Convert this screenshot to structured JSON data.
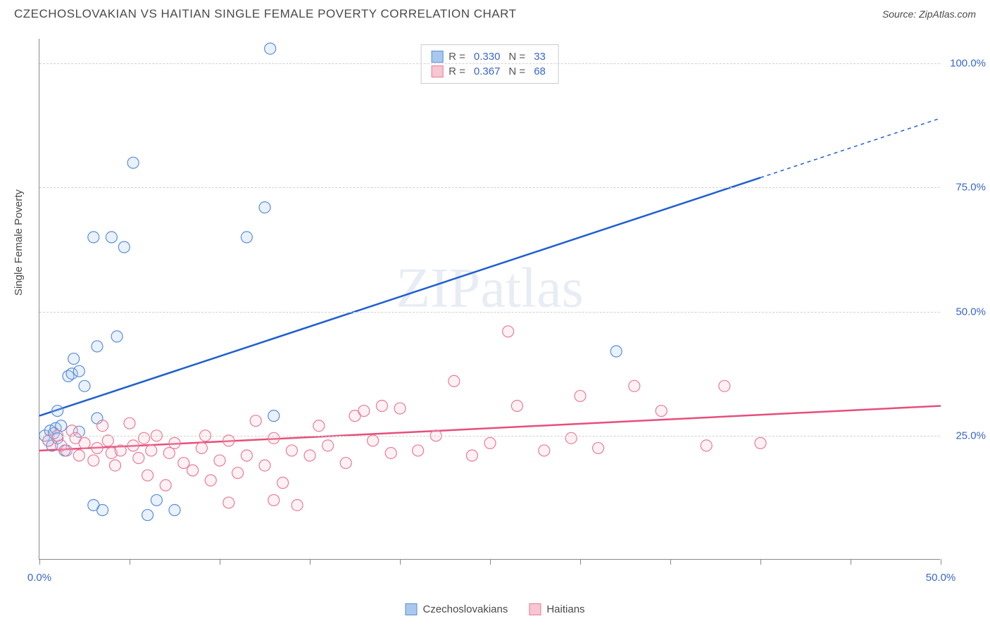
{
  "title": "CZECHOSLOVAKIAN VS HAITIAN SINGLE FEMALE POVERTY CORRELATION CHART",
  "source_label": "Source: ",
  "source_name": "ZipAtlas.com",
  "y_axis_label": "Single Female Poverty",
  "watermark": "ZIPatlas",
  "chart": {
    "type": "scatter",
    "xlim": [
      0,
      50
    ],
    "ylim": [
      0,
      105
    ],
    "x_ticks": [
      0,
      50
    ],
    "x_tick_labels": [
      "0.0%",
      "50.0%"
    ],
    "x_minor_ticks": [
      5,
      10,
      15,
      20,
      25,
      30,
      35,
      40,
      45
    ],
    "y_grid": [
      25,
      50,
      75,
      100
    ],
    "y_tick_labels": [
      "25.0%",
      "50.0%",
      "75.0%",
      "100.0%"
    ],
    "background_color": "#ffffff",
    "grid_color": "#d0d0d0",
    "axis_color": "#888888",
    "marker_radius": 8,
    "marker_stroke_width": 1.2,
    "marker_fill_opacity": 0.25,
    "series": [
      {
        "name": "Czechoslovakians",
        "color_fill": "#a9c8ee",
        "color_stroke": "#5a8ed6",
        "line_color": "#1f5fd0",
        "line_width": 2.5,
        "R": "0.330",
        "N": "33",
        "trend": {
          "x1": 0,
          "y1": 29,
          "x2": 40,
          "y2": 77,
          "x2_dash": 50,
          "y2_dash": 89
        },
        "points": [
          [
            0.3,
            25
          ],
          [
            0.5,
            24
          ],
          [
            0.6,
            26
          ],
          [
            0.7,
            23
          ],
          [
            0.8,
            25.5
          ],
          [
            0.9,
            26.5
          ],
          [
            1.0,
            24.5
          ],
          [
            1.2,
            27
          ],
          [
            1.0,
            30
          ],
          [
            1.6,
            37
          ],
          [
            1.8,
            37.5
          ],
          [
            2.2,
            38
          ],
          [
            1.9,
            40.5
          ],
          [
            3.2,
            43
          ],
          [
            4.3,
            45
          ],
          [
            2.5,
            35
          ],
          [
            3.0,
            65
          ],
          [
            4.0,
            65
          ],
          [
            4.7,
            63
          ],
          [
            5.2,
            80
          ],
          [
            11.5,
            65
          ],
          [
            12.5,
            71
          ],
          [
            12.8,
            103
          ],
          [
            3.0,
            11
          ],
          [
            3.5,
            10
          ],
          [
            6.0,
            9
          ],
          [
            6.5,
            12
          ],
          [
            7.5,
            10
          ],
          [
            13.0,
            29
          ],
          [
            3.2,
            28.5
          ],
          [
            1.4,
            22
          ],
          [
            2.2,
            25.8
          ],
          [
            32,
            42
          ]
        ]
      },
      {
        "name": "Haitians",
        "color_fill": "#f7c6d2",
        "color_stroke": "#e87b9a",
        "line_color": "#e64f7c",
        "line_width": 2.5,
        "R": "0.367",
        "N": "68",
        "trend": {
          "x1": 0,
          "y1": 22,
          "x2": 50,
          "y2": 31
        },
        "points": [
          [
            0.5,
            24
          ],
          [
            1.0,
            25
          ],
          [
            1.2,
            23
          ],
          [
            1.5,
            22
          ],
          [
            1.8,
            26
          ],
          [
            2.0,
            24.5
          ],
          [
            2.2,
            21
          ],
          [
            2.5,
            23.5
          ],
          [
            3.0,
            20
          ],
          [
            3.2,
            22.5
          ],
          [
            3.5,
            27
          ],
          [
            3.8,
            24
          ],
          [
            4.0,
            21.5
          ],
          [
            4.2,
            19
          ],
          [
            4.5,
            22
          ],
          [
            5.0,
            27.5
          ],
          [
            5.2,
            23
          ],
          [
            5.5,
            20.5
          ],
          [
            5.8,
            24.5
          ],
          [
            6.0,
            17
          ],
          [
            6.2,
            22
          ],
          [
            6.5,
            25
          ],
          [
            7.0,
            15
          ],
          [
            7.2,
            21.5
          ],
          [
            7.5,
            23.5
          ],
          [
            8.0,
            19.5
          ],
          [
            8.5,
            18
          ],
          [
            9.0,
            22.5
          ],
          [
            9.2,
            25
          ],
          [
            9.5,
            16
          ],
          [
            10.0,
            20
          ],
          [
            10.5,
            24
          ],
          [
            11.0,
            17.5
          ],
          [
            11.5,
            21
          ],
          [
            12.0,
            28
          ],
          [
            12.5,
            19
          ],
          [
            13.0,
            24.5
          ],
          [
            13.5,
            15.5
          ],
          [
            14.0,
            22
          ],
          [
            14.3,
            11
          ],
          [
            15.0,
            21
          ],
          [
            15.5,
            27
          ],
          [
            16.0,
            23
          ],
          [
            17.0,
            19.5
          ],
          [
            17.5,
            29
          ],
          [
            18.0,
            30
          ],
          [
            18.5,
            24
          ],
          [
            19.0,
            31
          ],
          [
            19.5,
            21.5
          ],
          [
            20.0,
            30.5
          ],
          [
            21.0,
            22
          ],
          [
            22.0,
            25
          ],
          [
            23.0,
            36
          ],
          [
            24.0,
            21
          ],
          [
            25.0,
            23.5
          ],
          [
            26.0,
            46
          ],
          [
            26.5,
            31
          ],
          [
            28.0,
            22
          ],
          [
            29.5,
            24.5
          ],
          [
            30.0,
            33
          ],
          [
            31.0,
            22.5
          ],
          [
            33.0,
            35
          ],
          [
            34.5,
            30
          ],
          [
            37.0,
            23
          ],
          [
            38.0,
            35
          ],
          [
            40.0,
            23.5
          ],
          [
            10.5,
            11.5
          ],
          [
            13.0,
            12
          ]
        ]
      }
    ]
  },
  "legend_top": {
    "r_label": "R =",
    "n_label": "N ="
  },
  "legend_bottom": {
    "label1": "Czechoslovakians",
    "label2": "Haitians"
  }
}
